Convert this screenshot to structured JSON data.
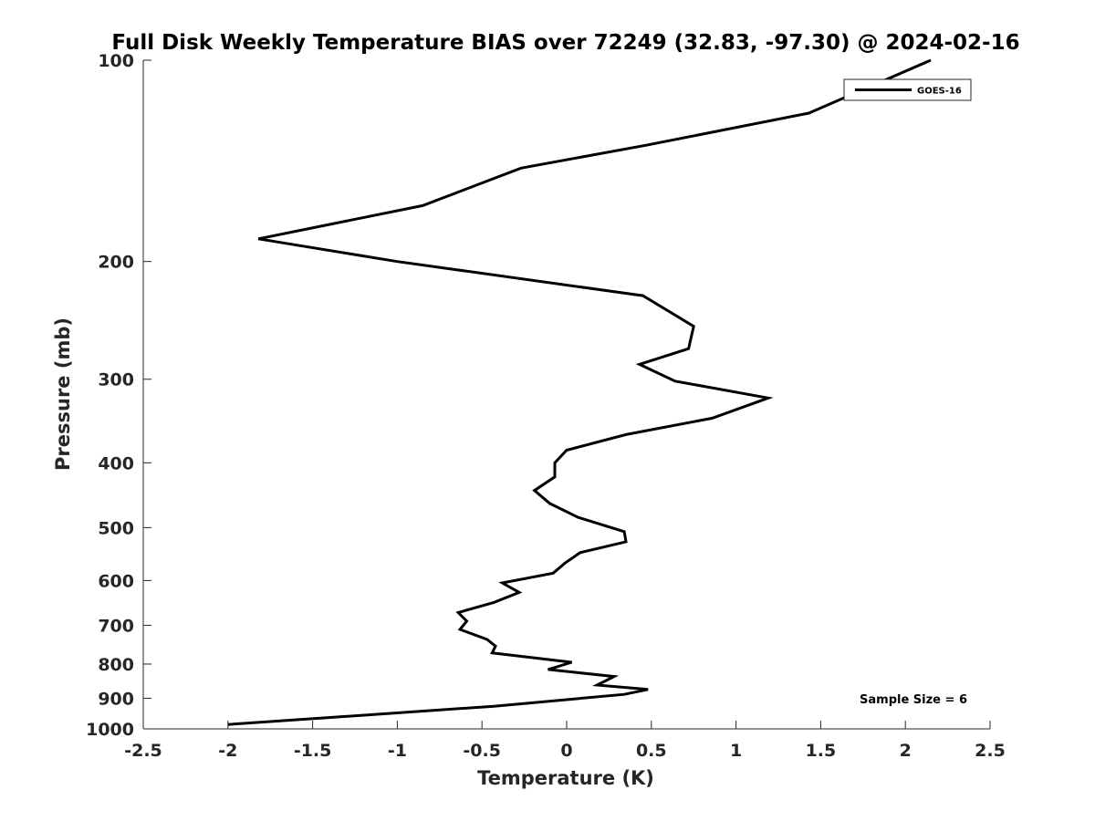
{
  "chart_data": {
    "type": "line",
    "title": "Full Disk Weekly Temperature BIAS over 72249 (32.83, -97.30) @ 2024-02-16",
    "xlabel": "Temperature (K)",
    "ylabel": "Pressure (mb)",
    "xlim": [
      -2.5,
      2.5
    ],
    "ylim": [
      100,
      1000
    ],
    "y_scale": "log",
    "y_reversed": true,
    "x_ticks": [
      -2.5,
      -2,
      -1.5,
      -1,
      -0.5,
      0,
      0.5,
      1,
      1.5,
      2,
      2.5
    ],
    "x_tick_labels": [
      "-2.5",
      "-2",
      "-1.5",
      "-1",
      "-0.5",
      "0",
      "0.5",
      "1",
      "1.5",
      "2",
      "2.5"
    ],
    "y_ticks": [
      100,
      200,
      300,
      400,
      500,
      600,
      700,
      800,
      900,
      1000
    ],
    "y_tick_labels": [
      "100",
      "200",
      "300",
      "400",
      "500",
      "600",
      "700",
      "800",
      "900",
      "1000"
    ],
    "grid": false,
    "legend_position": "top-right",
    "annotation": "Sample Size = 6",
    "series": [
      {
        "name": "GOES-16",
        "color": "#000000",
        "points": [
          {
            "x": 2.15,
            "p": 100
          },
          {
            "x": 1.43,
            "p": 120
          },
          {
            "x": 0.47,
            "p": 134
          },
          {
            "x": -0.27,
            "p": 145
          },
          {
            "x": -0.85,
            "p": 165
          },
          {
            "x": -1.82,
            "p": 185
          },
          {
            "x": -1.0,
            "p": 200
          },
          {
            "x": 0.45,
            "p": 225
          },
          {
            "x": 0.75,
            "p": 250
          },
          {
            "x": 0.72,
            "p": 270
          },
          {
            "x": 0.43,
            "p": 285
          },
          {
            "x": 0.64,
            "p": 302
          },
          {
            "x": 1.19,
            "p": 320
          },
          {
            "x": 0.86,
            "p": 343
          },
          {
            "x": 0.35,
            "p": 363
          },
          {
            "x": 0.0,
            "p": 383
          },
          {
            "x": -0.07,
            "p": 400
          },
          {
            "x": -0.07,
            "p": 420
          },
          {
            "x": -0.19,
            "p": 440
          },
          {
            "x": -0.1,
            "p": 460
          },
          {
            "x": 0.07,
            "p": 483
          },
          {
            "x": 0.34,
            "p": 507
          },
          {
            "x": 0.35,
            "p": 525
          },
          {
            "x": 0.08,
            "p": 545
          },
          {
            "x": -0.01,
            "p": 565
          },
          {
            "x": -0.08,
            "p": 585
          },
          {
            "x": -0.38,
            "p": 605
          },
          {
            "x": -0.28,
            "p": 625
          },
          {
            "x": -0.43,
            "p": 647
          },
          {
            "x": -0.64,
            "p": 670
          },
          {
            "x": -0.59,
            "p": 690
          },
          {
            "x": -0.63,
            "p": 710
          },
          {
            "x": -0.47,
            "p": 735
          },
          {
            "x": -0.42,
            "p": 752
          },
          {
            "x": -0.44,
            "p": 770
          },
          {
            "x": 0.03,
            "p": 795
          },
          {
            "x": -0.11,
            "p": 815
          },
          {
            "x": 0.28,
            "p": 835
          },
          {
            "x": 0.18,
            "p": 860
          },
          {
            "x": 0.48,
            "p": 873
          },
          {
            "x": 0.34,
            "p": 888
          },
          {
            "x": -0.43,
            "p": 925
          },
          {
            "x": -2.0,
            "p": 985
          }
        ]
      }
    ]
  }
}
